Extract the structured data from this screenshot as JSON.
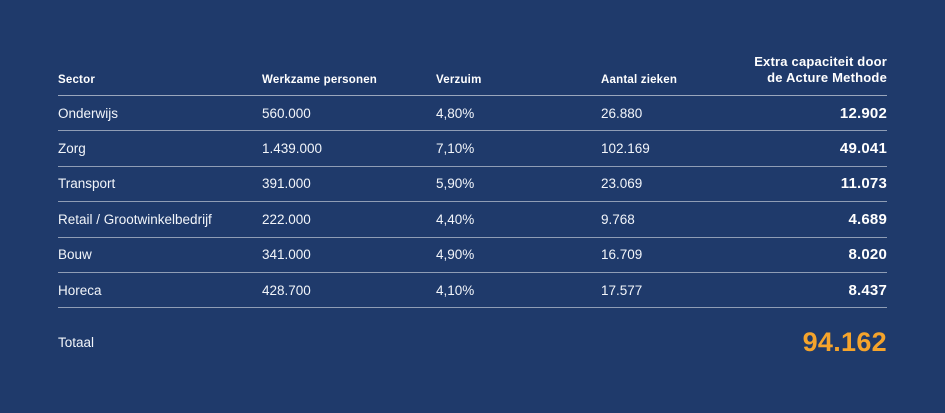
{
  "colors": {
    "background": "#1f3a6b",
    "text": "#f2f5fa",
    "divider": "rgba(255,255,255,0.5)",
    "accent_orange": "#f5a42c"
  },
  "chart_data": {
    "type": "table",
    "columns": [
      "Sector",
      "Werkzame personen",
      "Verzuim",
      "Aantal zieken",
      "Extra capaciteit door de Acture Methode"
    ],
    "header_extra": {
      "line1": "Extra capaciteit door",
      "line2": "de Acture Methode"
    },
    "rows": [
      {
        "sector": "Onderwijs",
        "werkzame_personen": "560.000",
        "verzuim": "4,80%",
        "aantal_zieken": "26.880",
        "extra_capaciteit": "12.902"
      },
      {
        "sector": "Zorg",
        "werkzame_personen": "1.439.000",
        "verzuim": "7,10%",
        "aantal_zieken": "102.169",
        "extra_capaciteit": "49.041"
      },
      {
        "sector": "Transport",
        "werkzame_personen": "391.000",
        "verzuim": "5,90%",
        "aantal_zieken": "23.069",
        "extra_capaciteit": "11.073"
      },
      {
        "sector": "Retail / Grootwinkelbedrijf",
        "werkzame_personen": "222.000",
        "verzuim": "4,40%",
        "aantal_zieken": "9.768",
        "extra_capaciteit": "4.689"
      },
      {
        "sector": "Bouw",
        "werkzame_personen": "341.000",
        "verzuim": "4,90%",
        "aantal_zieken": "16.709",
        "extra_capaciteit": "8.020"
      },
      {
        "sector": "Horeca",
        "werkzame_personen": "428.700",
        "verzuim": "4,10%",
        "aantal_zieken": "17.577",
        "extra_capaciteit": "8.437"
      }
    ],
    "total": {
      "label": "Totaal",
      "value": "94.162"
    }
  }
}
